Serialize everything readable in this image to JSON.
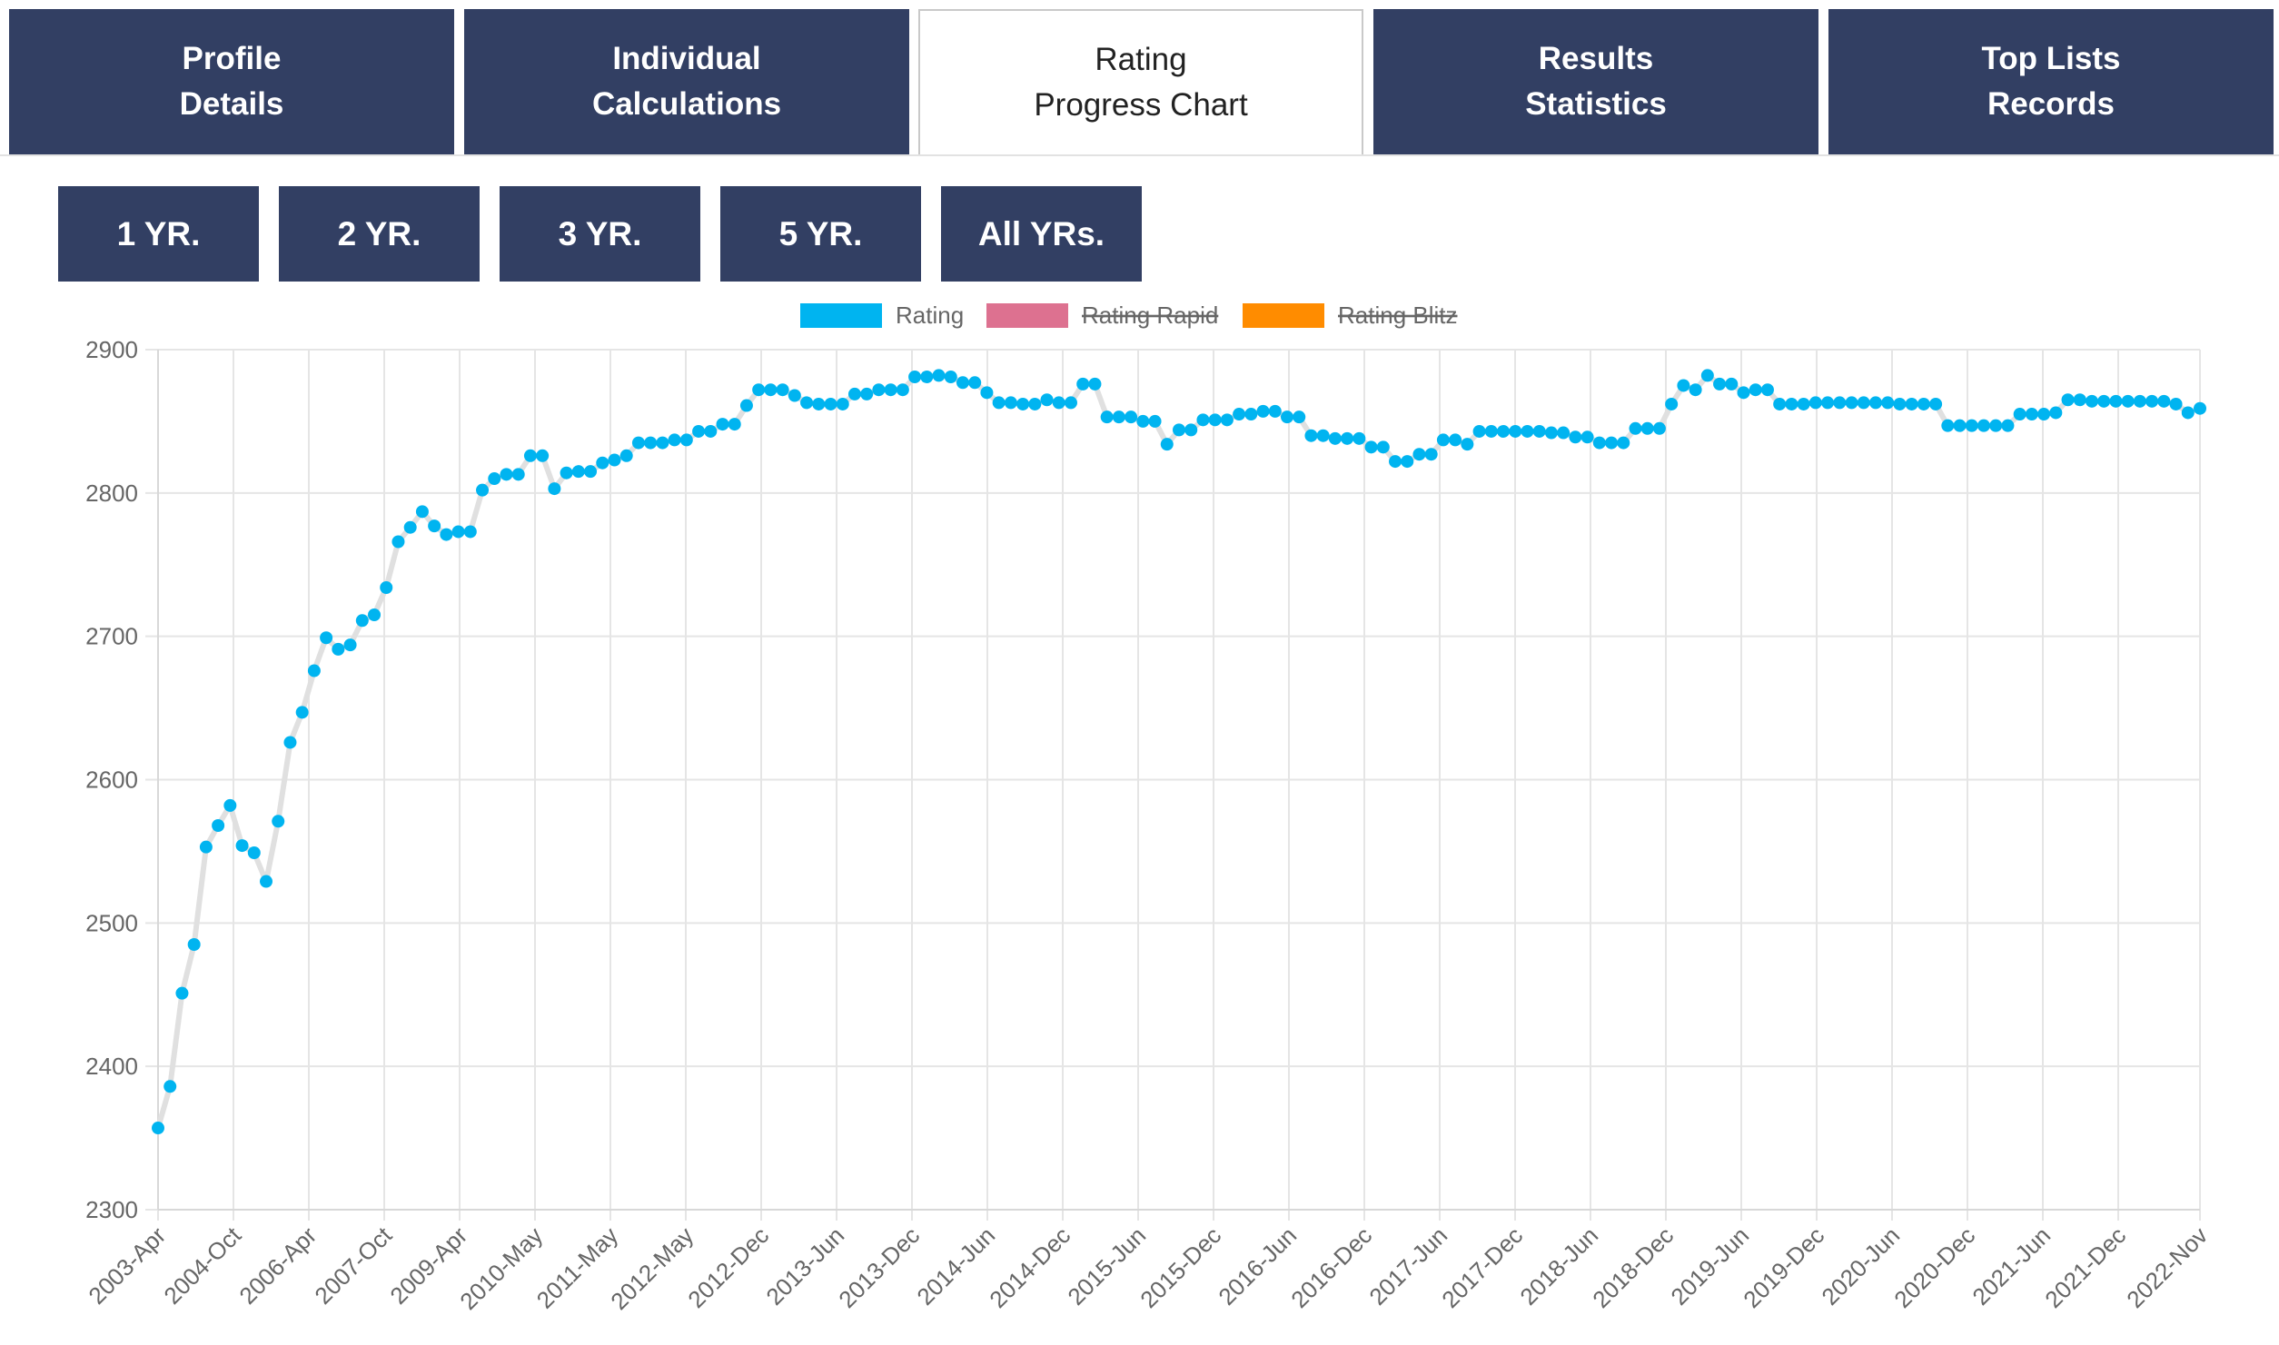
{
  "tabs": [
    {
      "line1": "Profile",
      "line2": "Details",
      "active": false
    },
    {
      "line1": "Individual",
      "line2": "Calculations",
      "active": false
    },
    {
      "line1": "Rating",
      "line2": "Progress Chart",
      "active": true
    },
    {
      "line1": "Results",
      "line2": "Statistics",
      "active": false
    },
    {
      "line1": "Top Lists",
      "line2": "Records",
      "active": false
    }
  ],
  "range_buttons": [
    "1 YR.",
    "2 YR.",
    "3 YR.",
    "5 YR.",
    "All YRs."
  ],
  "colors": {
    "tab_bg": "#323f63",
    "rating": "#00b4f0",
    "rating_rapid": "#dd7190",
    "rating_blitz": "#ff8c00",
    "line": "#e0e0e0"
  },
  "chart_data": {
    "type": "line",
    "legend": [
      {
        "name": "Rating",
        "color": "#00b4f0",
        "hidden": false
      },
      {
        "name": "Rating Rapid",
        "color": "#dd7190",
        "hidden": true
      },
      {
        "name": "Rating Blitz",
        "color": "#ff8c00",
        "hidden": true
      }
    ],
    "legend_position": "top-center",
    "x_tick_labels": [
      "2003-Apr",
      "2004-Oct",
      "2006-Apr",
      "2007-Oct",
      "2009-Apr",
      "2010-May",
      "2011-May",
      "2012-May",
      "2012-Dec",
      "2013-Jun",
      "2013-Dec",
      "2014-Jun",
      "2014-Dec",
      "2015-Jun",
      "2015-Dec",
      "2016-Jun",
      "2016-Dec",
      "2017-Jun",
      "2017-Dec",
      "2018-Jun",
      "2018-Dec",
      "2019-Jun",
      "2019-Dec",
      "2020-Jun",
      "2020-Dec",
      "2021-Jun",
      "2021-Dec",
      "2022-Nov"
    ],
    "ylim": [
      2300,
      2900
    ],
    "y_ticks": [
      2300,
      2400,
      2500,
      2600,
      2700,
      2800,
      2900
    ],
    "grid": true,
    "series": [
      {
        "name": "Rating",
        "values": [
          2357,
          2386,
          2451,
          2485,
          2553,
          2568,
          2582,
          2554,
          2549,
          2529,
          2571,
          2626,
          2647,
          2676,
          2699,
          2691,
          2694,
          2711,
          2715,
          2734,
          2766,
          2776,
          2787,
          2777,
          2771,
          2773,
          2773,
          2802,
          2810,
          2813,
          2813,
          2826,
          2826,
          2803,
          2814,
          2815,
          2815,
          2821,
          2823,
          2826,
          2835,
          2835,
          2835,
          2837,
          2837,
          2843,
          2843,
          2848,
          2848,
          2861,
          2872,
          2872,
          2872,
          2868,
          2863,
          2862,
          2862,
          2862,
          2869,
          2869,
          2872,
          2872,
          2872,
          2881,
          2881,
          2882,
          2881,
          2877,
          2877,
          2870,
          2863,
          2863,
          2862,
          2862,
          2865,
          2863,
          2863,
          2876,
          2876,
          2853,
          2853,
          2853,
          2850,
          2850,
          2834,
          2844,
          2844,
          2851,
          2851,
          2851,
          2855,
          2855,
          2857,
          2857,
          2853,
          2853,
          2840,
          2840,
          2838,
          2838,
          2838,
          2832,
          2832,
          2822,
          2822,
          2827,
          2827,
          2837,
          2837,
          2834,
          2843,
          2843,
          2843,
          2843,
          2843,
          2843,
          2842,
          2842,
          2839,
          2839,
          2835,
          2835,
          2835,
          2845,
          2845,
          2845,
          2862,
          2875,
          2872,
          2882,
          2876,
          2876,
          2870,
          2872,
          2872,
          2862,
          2862,
          2862,
          2863,
          2863,
          2863,
          2863,
          2863,
          2863,
          2863,
          2862,
          2862,
          2862,
          2862,
          2847,
          2847,
          2847,
          2847,
          2847,
          2847,
          2855,
          2855,
          2855,
          2856,
          2865,
          2865,
          2864,
          2864,
          2864,
          2864,
          2864,
          2864,
          2864,
          2862,
          2856,
          2859
        ]
      }
    ]
  }
}
